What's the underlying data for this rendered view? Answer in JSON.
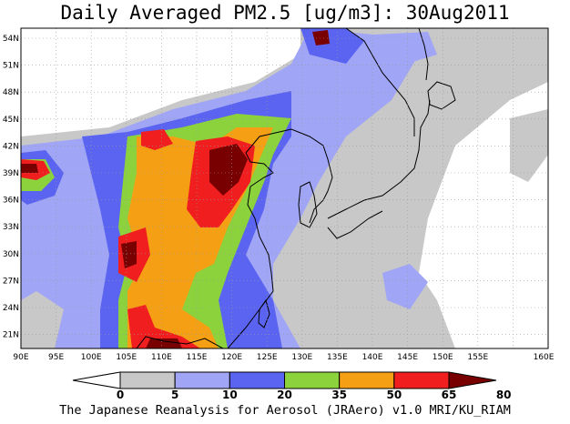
{
  "title": "Daily Averaged PM2.5 [ug/m3]: 30Aug2011",
  "footer": "The Japanese Reanalysis for Aerosol (JRAero) v1.0 MRI/KU_RIAM",
  "map": {
    "lon_labels": [
      "90E",
      "95E",
      "100E",
      "105E",
      "110E",
      "115E",
      "120E",
      "125E",
      "130E",
      "135E",
      "140E",
      "145E",
      "150E",
      "155E",
      "160E"
    ],
    "lat_labels": [
      "54N",
      "51N",
      "48N",
      "45N",
      "42N",
      "39N",
      "36N",
      "33N",
      "30N",
      "27N",
      "24N",
      "21N"
    ]
  },
  "colorbar": {
    "labels": [
      "0",
      "5",
      "10",
      "20",
      "35",
      "50",
      "65",
      "80"
    ],
    "colors": [
      "#ffffff",
      "#c8c8c8",
      "#a0a5f5",
      "#5a64f0",
      "#8cd23c",
      "#f5a014",
      "#f01e1e",
      "#780000"
    ]
  }
}
